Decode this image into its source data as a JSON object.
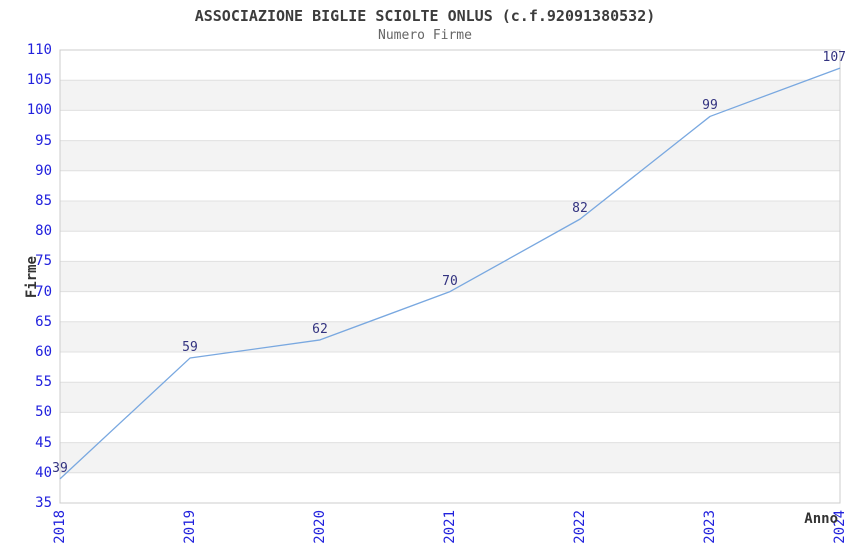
{
  "chart_data": {
    "type": "line",
    "title": "ASSOCIAZIONE BIGLIE SCIOLTE ONLUS (c.f.92091380532)",
    "subtitle": "Numero Firme",
    "xlabel": "Anno",
    "ylabel": "Firme",
    "categories": [
      "2018",
      "2019",
      "2020",
      "2021",
      "2022",
      "2023",
      "2024"
    ],
    "values": [
      39,
      59,
      62,
      70,
      82,
      99,
      107
    ],
    "ylim": [
      35,
      110
    ],
    "ytick_step": 5,
    "grid": true,
    "legend": "none",
    "colors": {
      "line": "#79a8e0",
      "tick_label": "#2222dd",
      "data_label": "#333380",
      "title": "#3c3c3c",
      "subtitle": "#666666",
      "axis_title": "#333333",
      "band_gray": "#f3f3f3",
      "band_white": "#ffffff",
      "gridline": "#e0e0e0",
      "border": "#cccccc"
    }
  }
}
